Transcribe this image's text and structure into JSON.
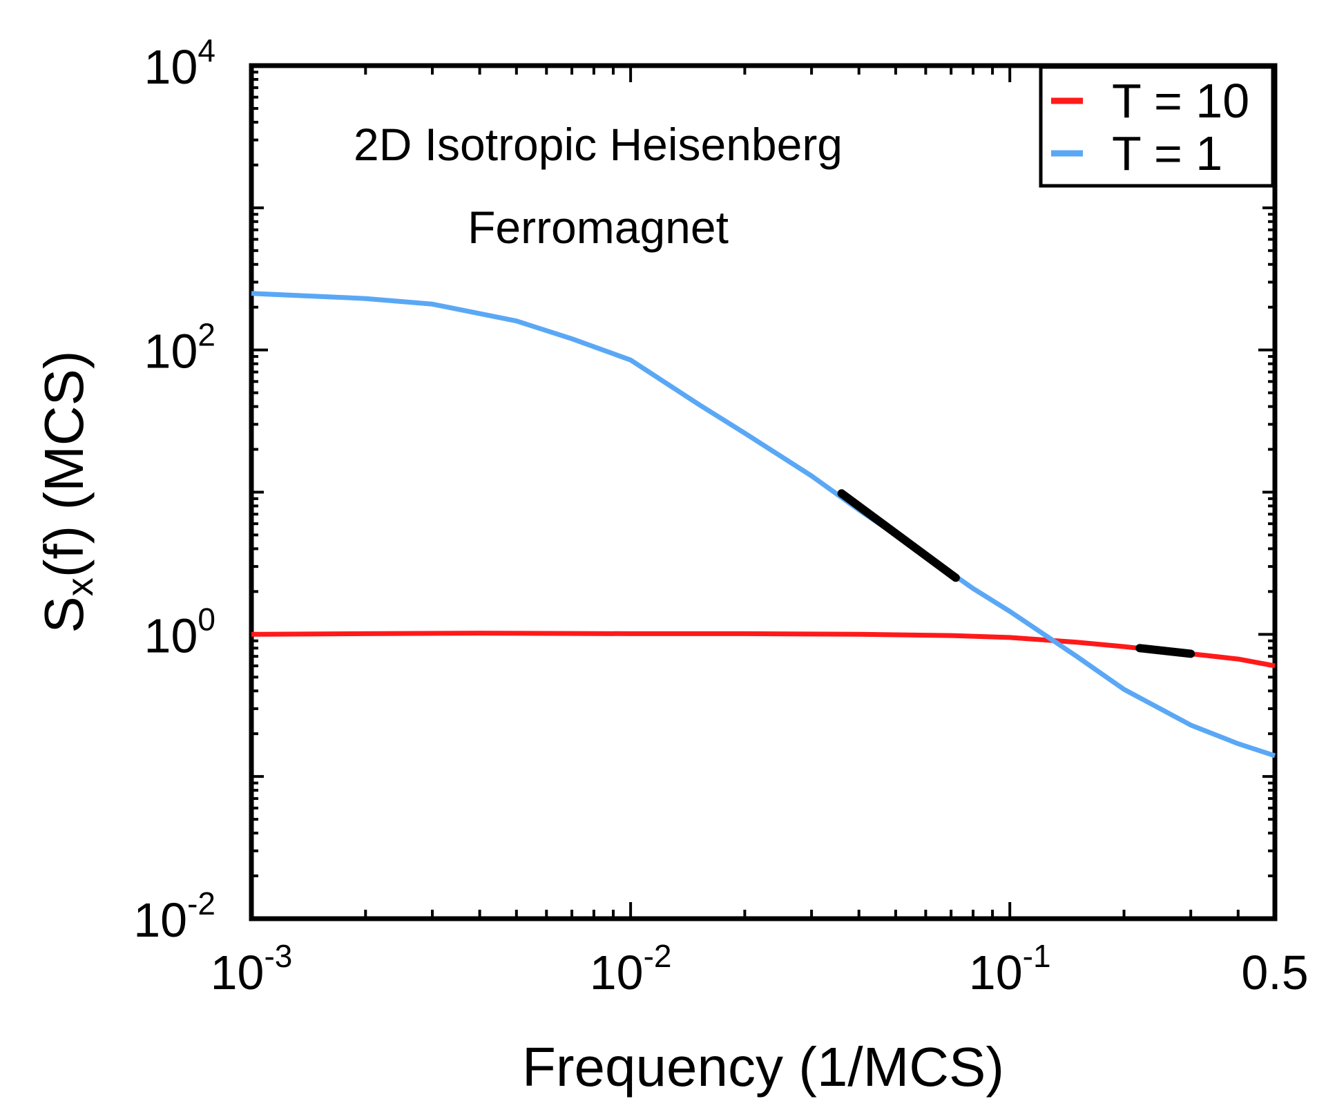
{
  "chart_data": {
    "type": "line",
    "xscale": "log",
    "yscale": "log",
    "xlim": [
      0.001,
      0.5
    ],
    "ylim": [
      0.01,
      10000
    ],
    "xlabel": "Frequency (1/MCS)",
    "ylabel": {
      "base": "S",
      "sub": "x",
      "rest": "(f) (MCS)"
    },
    "annotation": [
      "2D Isotropic Heisenberg",
      "Ferromagnet"
    ],
    "xticks": [
      {
        "value": 0.001,
        "base": "10",
        "exp": "-3"
      },
      {
        "value": 0.01,
        "base": "10",
        "exp": "-2"
      },
      {
        "value": 0.1,
        "base": "10",
        "exp": "-1"
      },
      {
        "value": 0.5,
        "base": "0.5",
        "exp": ""
      }
    ],
    "yticks": [
      {
        "value": 0.01,
        "base": "10",
        "exp": "-2"
      },
      {
        "value": 1,
        "base": "10",
        "exp": "0"
      },
      {
        "value": 100,
        "base": "10",
        "exp": "2"
      },
      {
        "value": 10000,
        "base": "10",
        "exp": "4"
      }
    ],
    "legend_position": "top-right",
    "series": [
      {
        "name": "T = 10",
        "color": "#ff1a1a",
        "x": [
          0.001,
          0.002,
          0.004,
          0.01,
          0.02,
          0.04,
          0.07,
          0.1,
          0.15,
          0.2,
          0.3,
          0.4,
          0.5
        ],
        "y": [
          1.0,
          1.01,
          1.02,
          1.01,
          1.01,
          1.0,
          0.98,
          0.95,
          0.88,
          0.82,
          0.73,
          0.67,
          0.6
        ],
        "fit": {
          "x": [
            0.22,
            0.3
          ],
          "y": [
            0.8,
            0.73
          ],
          "color": "#000000"
        }
      },
      {
        "name": "T = 1",
        "color": "#5aa8f5",
        "x": [
          0.001,
          0.002,
          0.003,
          0.005,
          0.007,
          0.01,
          0.015,
          0.02,
          0.03,
          0.04,
          0.06,
          0.08,
          0.1,
          0.15,
          0.2,
          0.3,
          0.4,
          0.5
        ],
        "y": [
          250,
          230,
          210,
          160,
          120,
          85,
          42,
          26,
          13,
          7.5,
          3.6,
          2.1,
          1.45,
          0.7,
          0.41,
          0.23,
          0.17,
          0.14
        ],
        "fit": {
          "x": [
            0.036,
            0.072
          ],
          "y": [
            9.8,
            2.5
          ],
          "color": "#000000"
        }
      }
    ]
  }
}
